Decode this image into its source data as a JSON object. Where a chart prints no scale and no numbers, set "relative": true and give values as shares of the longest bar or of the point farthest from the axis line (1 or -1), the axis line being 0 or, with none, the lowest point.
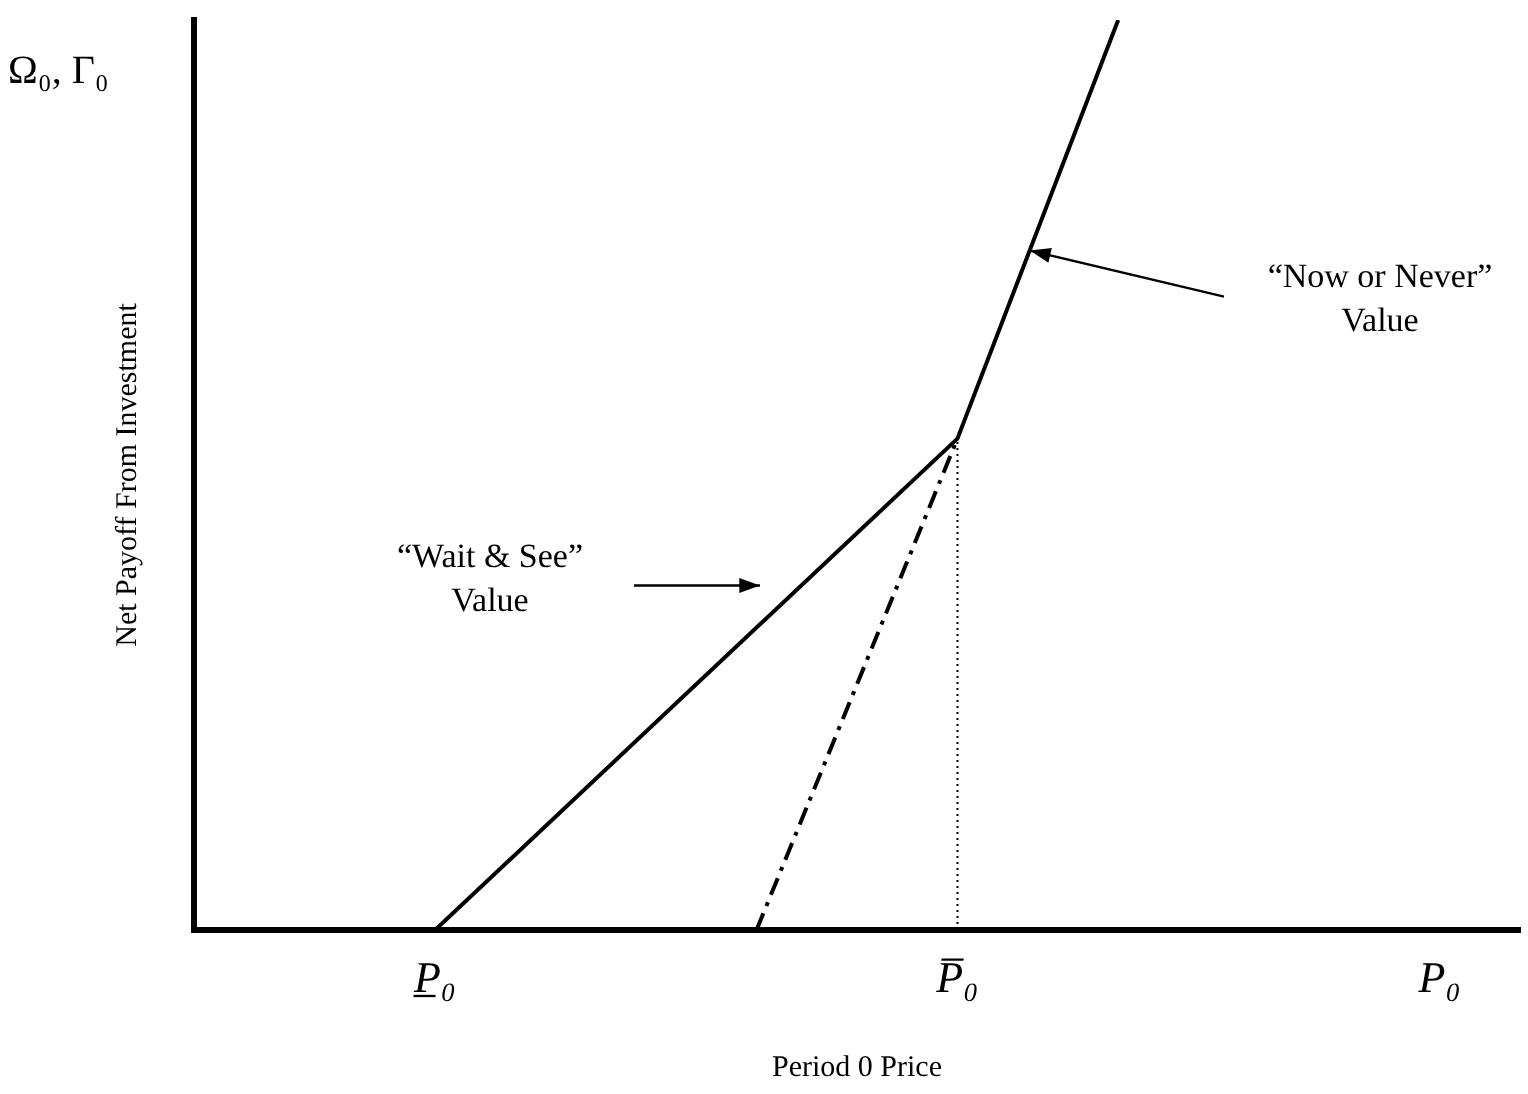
{
  "chart_data": {
    "type": "line",
    "relative": true,
    "xlabel": "Period 0 Price",
    "ylabel": "Net Payoff From Investment",
    "categories": [
      null,
      null,
      null,
      null,
      null,
      null,
      "P̲₀",
      null,
      null,
      null,
      null,
      null,
      null,
      null,
      null,
      null,
      null,
      null,
      null,
      "P̅₀",
      null,
      null,
      null,
      null,
      null,
      null,
      null,
      null,
      null,
      null,
      null,
      "P₀",
      null,
      null
    ],
    "grid": false,
    "legend": false,
    "marker": "none",
    "series": [
      {
        "color": "#000000",
        "values": [
          null,
          null,
          null,
          null,
          null,
          null,
          0,
          null,
          null,
          null,
          null,
          null,
          null,
          null,
          null,
          null,
          null,
          null,
          null,
          0.54,
          null,
          null,
          null,
          1,
          null,
          null,
          null,
          null,
          null,
          null,
          null,
          null,
          null,
          null
        ],
        "line_style": "solid"
      },
      {
        "color": "#000000",
        "values": [
          null,
          null,
          null,
          null,
          null,
          null,
          null,
          null,
          null,
          null,
          null,
          null,
          null,
          null,
          0,
          null,
          null,
          null,
          null,
          0.54,
          null,
          null,
          null,
          null,
          null,
          null,
          null,
          null,
          null,
          null,
          null,
          null,
          null,
          null
        ],
        "line_style": "dashed"
      },
      {
        "color": "#000000",
        "x": [
          "P̅₀",
          "P̅₀"
        ],
        "values": [
          0,
          0.54
        ],
        "line_style": "dotted"
      }
    ],
    "annotations": [
      "Ω₀, Γ₀",
      "“Now or Never” Value",
      "“Wait & See” Value"
    ]
  }
}
